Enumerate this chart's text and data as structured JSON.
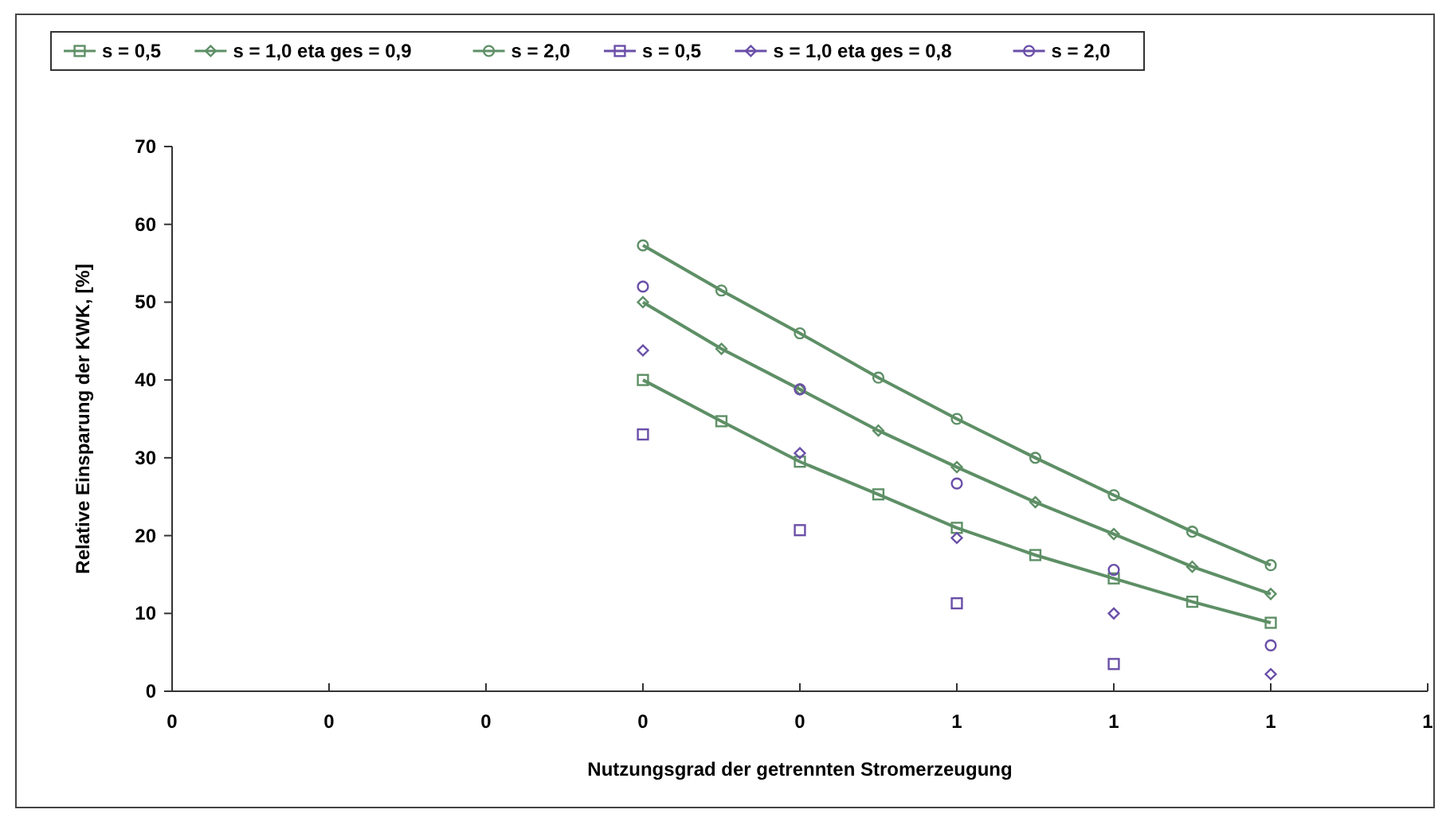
{
  "chart_data": {
    "type": "line",
    "xlabel": "Nutzungsgrad der getrennten Stromerzeugung",
    "ylabel": "Relative Einsparung der KWK, [%]",
    "xlim": [
      0,
      0.8
    ],
    "xticks": [
      {
        "value": 0,
        "label": "0"
      },
      {
        "value": 0.1,
        "label": "0"
      },
      {
        "value": 0.2,
        "label": "0"
      },
      {
        "value": 0.3,
        "label": "0"
      },
      {
        "value": 0.4,
        "label": "0"
      },
      {
        "value": 0.5,
        "label": "1"
      },
      {
        "value": 0.6,
        "label": "1"
      },
      {
        "value": 0.7,
        "label": "1"
      },
      {
        "value": 0.8,
        "label": "1"
      }
    ],
    "ylim": [
      0,
      70
    ],
    "yticks": [
      0,
      10,
      20,
      30,
      40,
      50,
      60,
      70
    ],
    "grid": false,
    "legend": "top",
    "series": [
      {
        "name": "s = 0,5",
        "color": "#5e8f66",
        "marker": "square",
        "x": [
          0.3,
          0.35,
          0.4,
          0.45,
          0.5,
          0.55,
          0.6,
          0.65,
          0.7
        ],
        "values": [
          40,
          34.7,
          29.5,
          25.3,
          21,
          17.5,
          14.5,
          11.5,
          8.8
        ]
      },
      {
        "name": "s = 1,0 eta ges = 0,9",
        "color": "#5e8f66",
        "marker": "diamond",
        "x": [
          0.3,
          0.35,
          0.4,
          0.45,
          0.5,
          0.55,
          0.6,
          0.65,
          0.7
        ],
        "values": [
          50,
          44,
          38.8,
          33.5,
          28.8,
          24.3,
          20.2,
          16,
          12.5
        ]
      },
      {
        "name": "s = 2,0",
        "color": "#5e8f66",
        "marker": "circle",
        "x": [
          0.3,
          0.35,
          0.4,
          0.45,
          0.5,
          0.55,
          0.6,
          0.65,
          0.7
        ],
        "values": [
          57.3,
          51.5,
          46,
          40.3,
          35,
          30,
          25.2,
          20.5,
          16.2
        ]
      },
      {
        "name": "s = 0,5",
        "type": "scatter",
        "color": "#6a4fa8",
        "marker": "square",
        "x": [
          0.3,
          0.4,
          0.5,
          0.6
        ],
        "values": [
          33,
          20.7,
          11.3,
          3.5
        ]
      },
      {
        "name": "s = 1,0 eta ges = 0,8",
        "type": "scatter",
        "color": "#6a4fa8",
        "marker": "diamond",
        "x": [
          0.3,
          0.4,
          0.5,
          0.6,
          0.7
        ],
        "values": [
          43.8,
          30.6,
          19.7,
          10,
          2.2
        ]
      },
      {
        "name": "s = 2,0",
        "type": "scatter",
        "color": "#6a4fa8",
        "marker": "circle",
        "x": [
          0.3,
          0.4,
          0.5,
          0.6,
          0.7
        ],
        "values": [
          52,
          38.8,
          26.7,
          15.6,
          5.9
        ]
      }
    ]
  }
}
